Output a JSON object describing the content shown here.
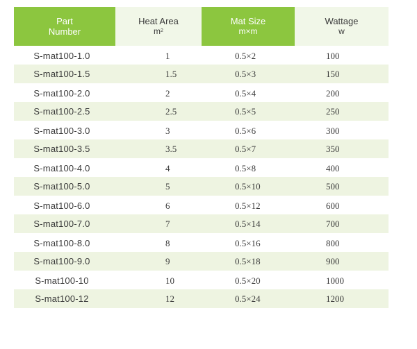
{
  "table": {
    "headers": {
      "part": [
        "Part",
        "Number"
      ],
      "area": [
        "Heat  Area",
        "m",
        "2"
      ],
      "size": [
        "Mat  Size",
        "m×m"
      ],
      "watt": [
        "Wattage",
        "w"
      ]
    },
    "rows": [
      [
        "S-mat100-1.0",
        "1",
        "0.5×2",
        "100"
      ],
      [
        "S-mat100-1.5",
        "1.5",
        "0.5×3",
        "150"
      ],
      [
        "S-mat100-2.0",
        "2",
        "0.5×4",
        "200"
      ],
      [
        "S-mat100-2.5",
        "2.5",
        "0.5×5",
        "250"
      ],
      [
        "S-mat100-3.0",
        "3",
        "0.5×6",
        "300"
      ],
      [
        "S-mat100-3.5",
        "3.5",
        "0.5×7",
        "350"
      ],
      [
        "S-mat100-4.0",
        "4",
        "0.5×8",
        "400"
      ],
      [
        "S-mat100-5.0",
        "5",
        "0.5×10",
        "500"
      ],
      [
        "S-mat100-6.0",
        "6",
        "0.5×12",
        "600"
      ],
      [
        "S-mat100-7.0",
        "7",
        "0.5×14",
        "700"
      ],
      [
        "S-mat100-8.0",
        "8",
        "0.5×16",
        "800"
      ],
      [
        "S-mat100-9.0",
        "9",
        "0.5×18",
        "900"
      ],
      [
        "S-mat100-10",
        "10",
        "0.5×20",
        "1000"
      ],
      [
        "S-mat100-12",
        "12",
        "0.5×24",
        "1200"
      ]
    ]
  },
  "colors": {
    "header_green": "#8cc63f",
    "header_pale": "#f1f7e8",
    "row_stripe": "#eef4e1"
  }
}
